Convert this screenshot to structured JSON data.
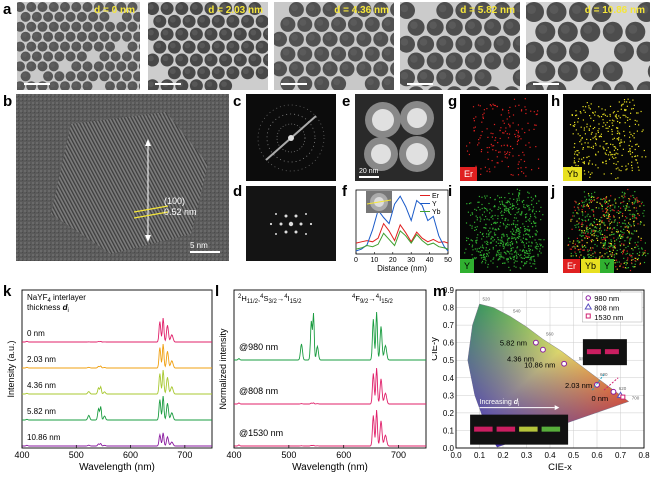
{
  "panels": {
    "a": "a",
    "b": "b",
    "c": "c",
    "d": "d",
    "e": "e",
    "f": "f",
    "g": "g",
    "h": "h",
    "i": "i",
    "j": "j",
    "k": "k",
    "l": "l",
    "m": "m"
  },
  "panel_a": {
    "labels": [
      "d = 0 nm",
      "d = 2.03 nm",
      "d = 4.36 nm",
      "d = 5.82 nm",
      "d = 10.86 nm"
    ]
  },
  "panel_b": {
    "lattice_plane": "(100)",
    "spacing": "0.52 nm",
    "scalebar": "5 nm"
  },
  "panel_e": {
    "scalebar": "20 nm"
  },
  "elements": {
    "er": "Er",
    "yb": "Yb",
    "y": "Y"
  },
  "colors": {
    "er": "#e02020",
    "yb": "#e8e020",
    "y": "#30b030",
    "green_band": "#1a9c40",
    "red_band": "#e0206a"
  },
  "chart_data": [
    {
      "panel": "f",
      "type": "line",
      "xlabel": "Distance (nm)",
      "xlim": [
        0,
        50
      ],
      "xticks": [
        0,
        10,
        20,
        30,
        40,
        50
      ],
      "legend_position": "top-right",
      "series": [
        {
          "name": "Er",
          "color": "#e02020",
          "x": [
            0,
            3,
            6,
            9,
            12,
            15,
            18,
            21,
            24,
            27,
            30,
            33,
            36,
            39,
            42,
            45,
            48,
            50
          ],
          "y": [
            0.18,
            0.2,
            0.22,
            0.2,
            0.26,
            0.5,
            0.38,
            0.22,
            0.48,
            0.35,
            0.2,
            0.36,
            0.26,
            0.2,
            0.24,
            0.19,
            0.2,
            0.18
          ]
        },
        {
          "name": "Y",
          "color": "#1a5ac8",
          "x": [
            0,
            3,
            6,
            9,
            12,
            15,
            18,
            21,
            24,
            27,
            30,
            33,
            36,
            39,
            42,
            45,
            48,
            50
          ],
          "y": [
            0.05,
            0.08,
            0.15,
            0.4,
            0.72,
            0.6,
            0.5,
            0.82,
            0.95,
            0.78,
            0.55,
            0.88,
            0.8,
            0.55,
            0.62,
            0.3,
            0.12,
            0.05
          ]
        },
        {
          "name": "Yb",
          "color": "#40a030",
          "x": [
            0,
            3,
            6,
            9,
            12,
            15,
            18,
            21,
            24,
            27,
            30,
            33,
            36,
            39,
            42,
            45,
            48,
            50
          ],
          "y": [
            0.08,
            0.1,
            0.14,
            0.12,
            0.16,
            0.34,
            0.24,
            0.14,
            0.38,
            0.3,
            0.18,
            0.32,
            0.22,
            0.15,
            0.18,
            0.12,
            0.1,
            0.08
          ]
        }
      ]
    },
    {
      "panel": "k",
      "type": "line",
      "xlabel": "Wavelength (nm)",
      "ylabel": "Intensity (a.u.)",
      "annotation_line1": "NaYF",
      "annotation_sub": "4",
      "annotation_line1b": " interlayer",
      "annotation_line2": "thickness",
      "annotation_var": "d",
      "annotation_var_sub": "i",
      "xlim": [
        400,
        750
      ],
      "xticks": [
        400,
        500,
        600,
        700
      ],
      "series": [
        {
          "name": "0 nm",
          "color": "#e0206a",
          "green_peak": 0.02,
          "red_peak": 1.0
        },
        {
          "name": "2.03 nm",
          "color": "#f0a010",
          "green_peak": 0.08,
          "red_peak": 1.0
        },
        {
          "name": "4.36 nm",
          "color": "#a8c830",
          "green_peak": 0.3,
          "red_peak": 1.0
        },
        {
          "name": "5.82 nm",
          "color": "#1a9c40",
          "green_peak": 0.55,
          "red_peak": 1.0
        },
        {
          "name": "10.86 nm",
          "color": "#8a1aa0",
          "green_peak": 0.1,
          "red_peak": 0.55
        }
      ]
    },
    {
      "panel": "l",
      "type": "line",
      "xlabel": "Wavelength (nm)",
      "ylabel": "Normalized intensity",
      "xlim": [
        400,
        750
      ],
      "xticks": [
        400,
        500,
        600,
        700
      ],
      "transition_green_a": "H",
      "transition_green_a_sub": "11/2",
      "transition_green_b": "S",
      "transition_green_b_sub": "3/2",
      "transition_green_c": "I",
      "transition_green_c_sub": "15/2",
      "transition_red_a": "F",
      "transition_red_a_sub": "9/2",
      "transition_red_c": "I",
      "transition_red_c_sub": "15/2",
      "series": [
        {
          "name": "@980 nm",
          "color": "#1a9c40",
          "green_peak": 0.95,
          "red_peak": 1.0
        },
        {
          "name": "@808 nm",
          "color": "#e0206a",
          "green_peak": 0.03,
          "red_peak": 1.0
        },
        {
          "name": "@1530 nm",
          "color": "#e0206a",
          "green_peak": 0.02,
          "red_peak": 1.0
        }
      ]
    },
    {
      "panel": "m",
      "type": "scatter",
      "xlabel": "CIE-x",
      "ylabel": "CIE-y",
      "xlim": [
        0.0,
        0.8
      ],
      "ylim": [
        0.0,
        0.9
      ],
      "xticks": [
        0.0,
        0.1,
        0.2,
        0.3,
        0.4,
        0.5,
        0.6,
        0.7,
        0.8
      ],
      "yticks": [
        0.0,
        0.1,
        0.2,
        0.3,
        0.4,
        0.5,
        0.6,
        0.7,
        0.8,
        0.9
      ],
      "legend": [
        "980 nm",
        "808 nm",
        "1530 nm"
      ],
      "point_labels": [
        "5.82 nm",
        "4.36 nm",
        "10.86 nm",
        "2.03 nm",
        "0 nm"
      ],
      "arrow_label": "Increasing",
      "arrow_var": "d",
      "arrow_var_sub": "i",
      "wavelength_ticks": [
        "520",
        "540",
        "560",
        "580",
        "600",
        "620",
        "700"
      ],
      "series": [
        {
          "name": "980 nm",
          "x": [
            0.34,
            0.37,
            0.46,
            0.6,
            0.67
          ],
          "y": [
            0.6,
            0.56,
            0.48,
            0.36,
            0.32
          ]
        },
        {
          "name": "808 nm",
          "x": [
            0.7
          ],
          "y": [
            0.3
          ]
        },
        {
          "name": "1530 nm",
          "x": [
            0.71
          ],
          "y": [
            0.29
          ]
        }
      ]
    }
  ]
}
